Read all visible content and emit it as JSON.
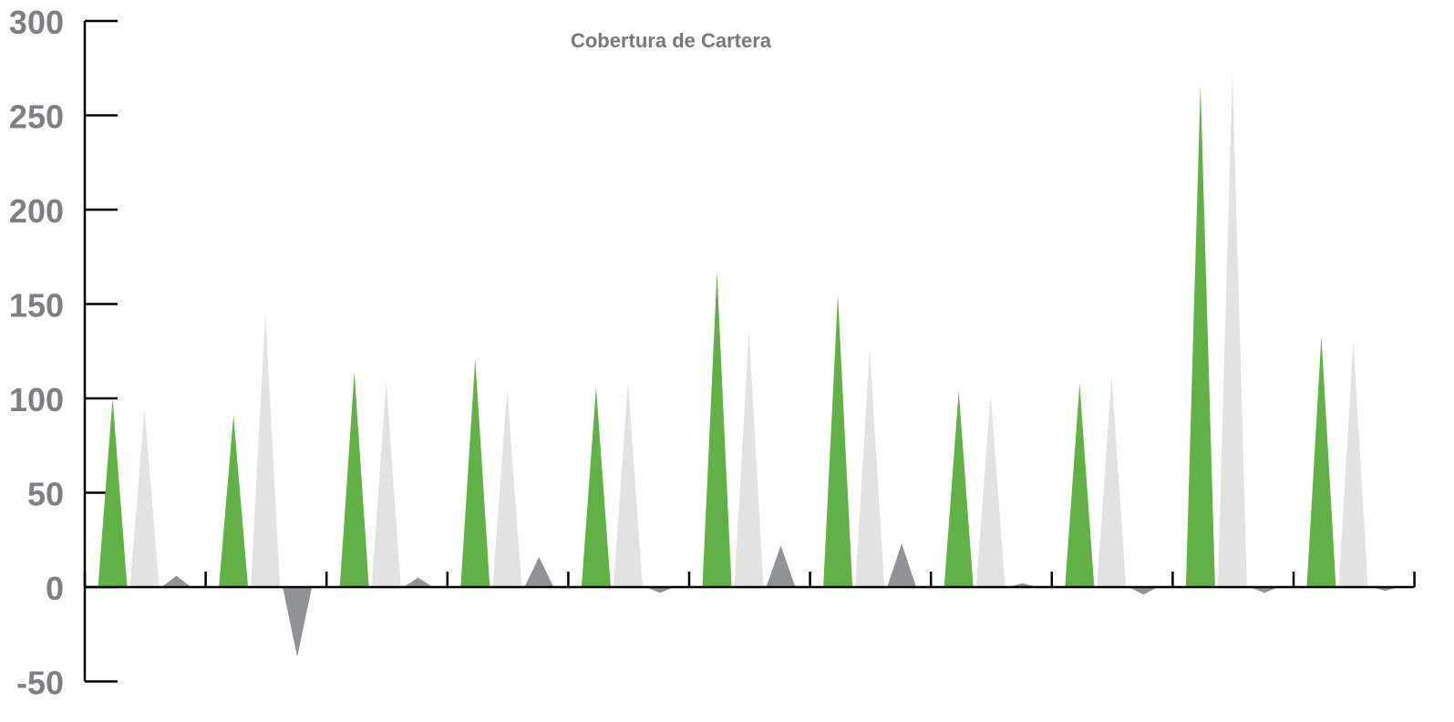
{
  "chart_data": {
    "type": "bar",
    "title": "Cobertura de Cartera",
    "xlabel": "",
    "ylabel": "",
    "ylim": [
      -50,
      300
    ],
    "yticks": [
      300,
      250,
      200,
      150,
      100,
      50,
      0,
      -50
    ],
    "ytick_labels": [
      "300",
      "250",
      "200",
      "150",
      "100",
      "50",
      "0",
      "-50"
    ],
    "grid": false,
    "legend": "none",
    "mark_shape": "triangle",
    "group_count": 11,
    "series": [
      {
        "color": "#62b146",
        "values": [
          100,
          91,
          114,
          121,
          106,
          167,
          155,
          104,
          108,
          266,
          133
        ]
      },
      {
        "color": "#e2e2e3",
        "values": [
          94,
          145,
          109,
          105,
          109,
          136,
          126,
          102,
          112,
          273,
          130
        ]
      },
      {
        "color": "#919295",
        "values": [
          6,
          -37,
          5,
          16,
          -3,
          22,
          23,
          2,
          -4,
          -3,
          -2
        ]
      }
    ]
  }
}
